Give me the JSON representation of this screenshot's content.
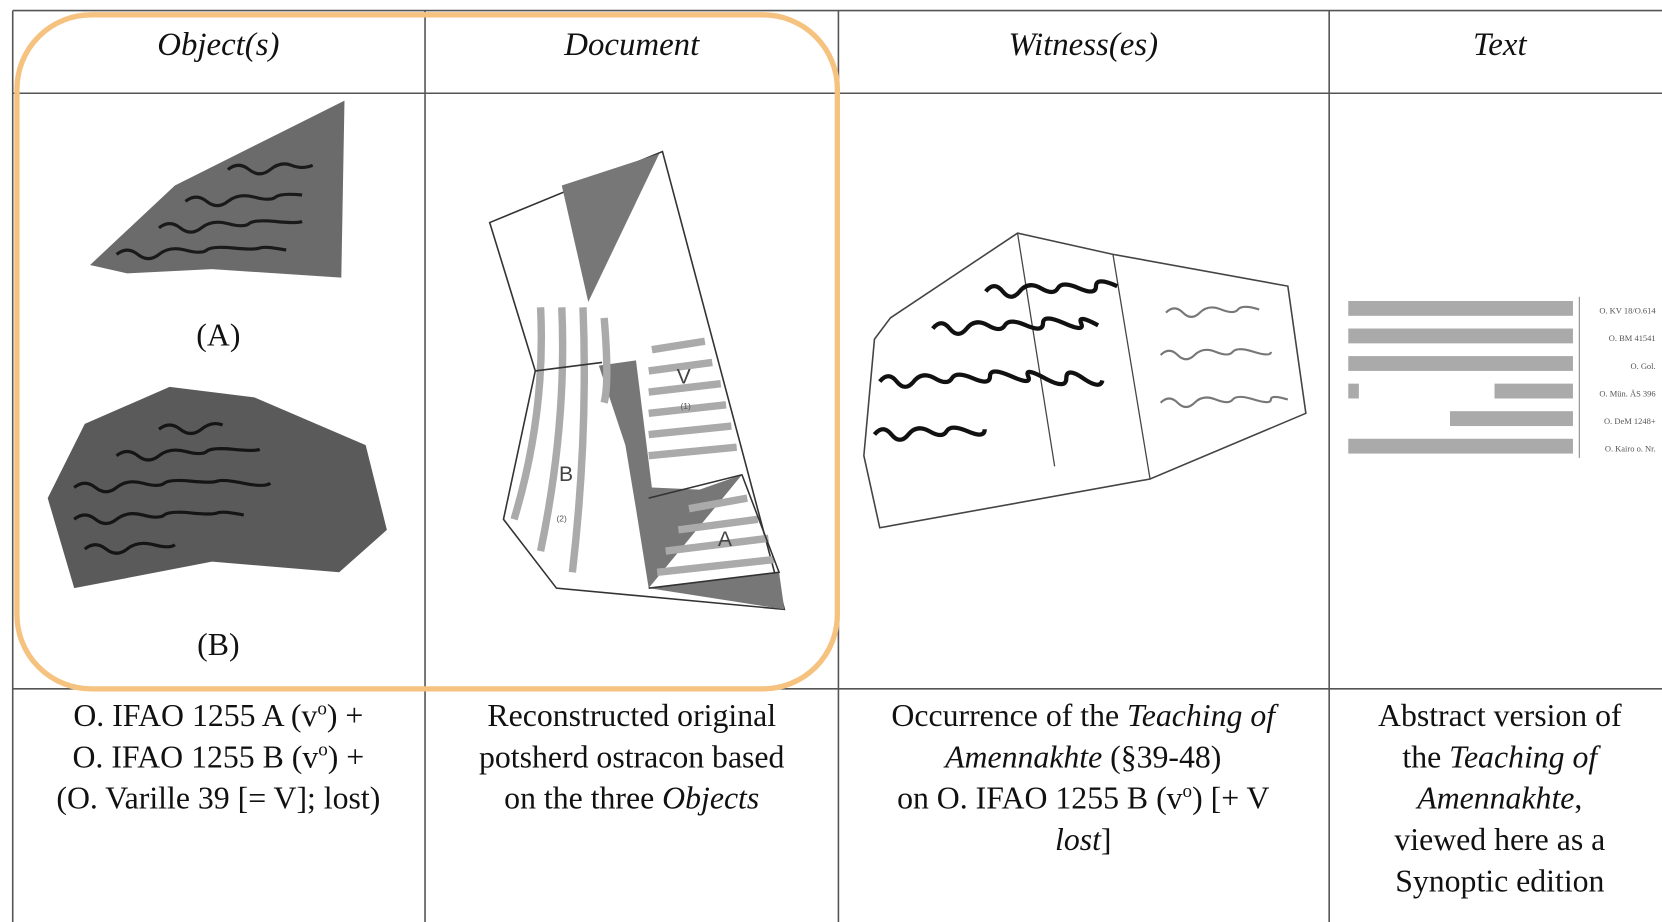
{
  "table": {
    "headers": [
      "Object(s)",
      "Document",
      "Witness(es)",
      "Text"
    ],
    "object_labels": [
      "(A)",
      "(B)"
    ],
    "document_labels": [
      "V",
      "(1)",
      "B",
      "(2)",
      "A"
    ],
    "text_sigla": [
      "O. KV 18/O.614",
      "O. BM 41541",
      "O. Gol.",
      "O. Mün. ÄS 396",
      "O. DeM 1248+",
      "O. Kairo o. Nr."
    ],
    "captions": [
      [
        [
          {
            "text": "O. IFAO 1255 A (v"
          },
          {
            "text": "o",
            "style": "sup"
          },
          {
            "text": ") +"
          }
        ],
        [
          {
            "text": "O. IFAO 1255 B (v"
          },
          {
            "text": "o",
            "style": "sup"
          },
          {
            "text": ") +"
          }
        ],
        [
          {
            "text": "(O. Varille 39 [= V]; lost)"
          }
        ]
      ],
      [
        [
          {
            "text": "Reconstructed original"
          }
        ],
        [
          {
            "text": "potsherd ostracon based"
          }
        ],
        [
          {
            "text": "on the three "
          },
          {
            "text": "Objects",
            "style": "italic"
          }
        ]
      ],
      [
        [
          {
            "text": "Occurrence of the "
          },
          {
            "text": "Teaching of",
            "style": "italic"
          }
        ],
        [
          {
            "text": "Amennakhte",
            "style": "italic"
          },
          {
            "text": " (§39-48)"
          }
        ],
        [
          {
            "text": "on O. IFAO 1255 B (v"
          },
          {
            "text": "o",
            "style": "sup"
          },
          {
            "text": ") [+ V"
          }
        ],
        [
          {
            "text": "lost",
            "style": "italic"
          },
          {
            "text": "]"
          }
        ]
      ],
      [
        [
          {
            "text": "Abstract version of"
          }
        ],
        [
          {
            "text": "the "
          },
          {
            "text": "Teaching of",
            "style": "italic"
          }
        ],
        [
          {
            "text": "Amennakhte",
            "style": "italic"
          },
          {
            "text": ","
          }
        ],
        [
          {
            "text": "viewed here as a"
          }
        ],
        [
          {
            "text": "Synoptic edition"
          }
        ]
      ]
    ]
  }
}
